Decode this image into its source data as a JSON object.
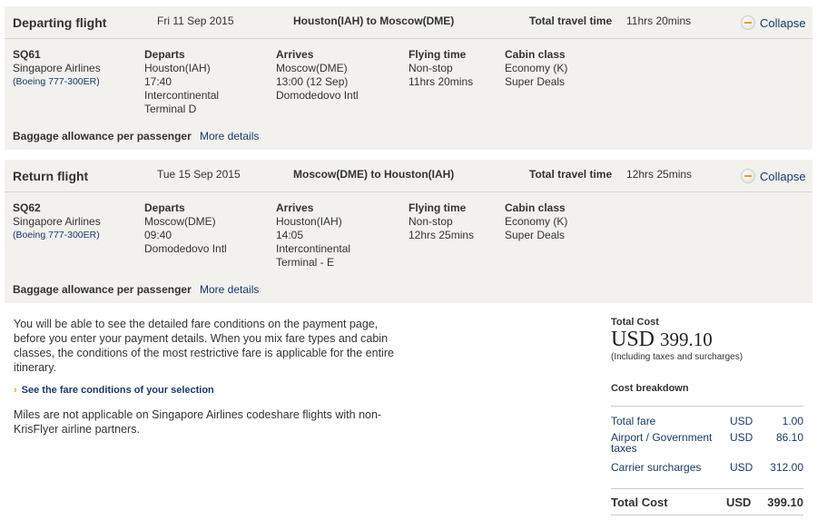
{
  "flights": [
    {
      "title": "Departing flight",
      "date": "Fri 11 Sep 2015",
      "route": "Houston(IAH) to Moscow(DME)",
      "total_label": "Total travel time",
      "total_value": "11hrs 20mins",
      "collapse": "Collapse",
      "flight_no": "SQ61",
      "airline": "Singapore Airlines",
      "aircraft": "(Boeing 777-300ER)",
      "departs": {
        "label": "Departs",
        "lines": [
          "Houston(IAH)",
          "17:40",
          "Intercontinental",
          "Terminal D"
        ]
      },
      "arrives": {
        "label": "Arrives",
        "lines": [
          "Moscow(DME)",
          "13:00 (12 Sep)",
          "Domodedovo Intl"
        ]
      },
      "flying": {
        "label": "Flying time",
        "lines": [
          "Non-stop",
          "11hrs 20mins"
        ]
      },
      "cabin": {
        "label": "Cabin class",
        "lines": [
          "Economy (K)",
          "Super Deals"
        ]
      },
      "baggage": "Baggage allowance per passenger",
      "more": "More details"
    },
    {
      "title": "Return flight",
      "date": "Tue 15 Sep 2015",
      "route": "Moscow(DME) to Houston(IAH)",
      "total_label": "Total travel time",
      "total_value": "12hrs 25mins",
      "collapse": "Collapse",
      "flight_no": "SQ62",
      "airline": "Singapore Airlines",
      "aircraft": "(Boeing 777-300ER)",
      "departs": {
        "label": "Departs",
        "lines": [
          "Moscow(DME)",
          "09:40",
          "Domodedovo Intl"
        ]
      },
      "arrives": {
        "label": "Arrives",
        "lines": [
          "Houston(IAH)",
          "14:05",
          "Intercontinental",
          "Terminal - E"
        ]
      },
      "flying": {
        "label": "Flying time",
        "lines": [
          "Non-stop",
          "12hrs 25mins"
        ]
      },
      "cabin": {
        "label": "Cabin class",
        "lines": [
          "Economy (K)",
          "Super Deals"
        ]
      },
      "baggage": "Baggage allowance per passenger",
      "more": "More details"
    }
  ],
  "info": {
    "text": "You will be able to see the detailed fare conditions on the payment page, before you enter your payment details. When you mix fare types and cabin classes, the conditions of the most restrictive fare is applicable for the entire itinerary.",
    "link": "See the fare conditions of your selection",
    "miles": "Miles are not applicable on Singapore Airlines codeshare flights with non-KrisFlyer airline partners."
  },
  "cost": {
    "label": "Total Cost",
    "currency": "USD",
    "amount": "399.10",
    "note": "(Including taxes and surcharges)",
    "breakdown_label": "Cost breakdown",
    "rows": [
      {
        "label": "Total fare",
        "cur": "USD",
        "amt": "1.00"
      },
      {
        "label": "Airport / Government taxes",
        "cur": "USD",
        "amt": "86.10"
      },
      {
        "label": "Carrier surcharges",
        "cur": "USD",
        "amt": "312.00"
      }
    ],
    "total": {
      "label": "Total Cost",
      "cur": "USD",
      "amt": "399.10"
    }
  },
  "colors": {
    "panel": "#f2f1ee",
    "link": "#1a3a6b",
    "accent": "#f29a20"
  }
}
